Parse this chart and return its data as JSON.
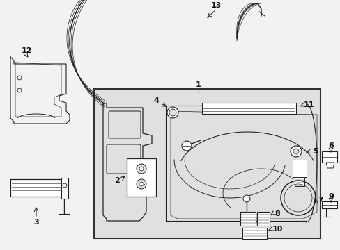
{
  "bg_color": "#f2f2f2",
  "line_color": "#222222",
  "box_bg": "#e0e0e0",
  "box_border": "#333333",
  "label_color": "#111111",
  "fig_width": 4.89,
  "fig_height": 3.6,
  "dpi": 100
}
